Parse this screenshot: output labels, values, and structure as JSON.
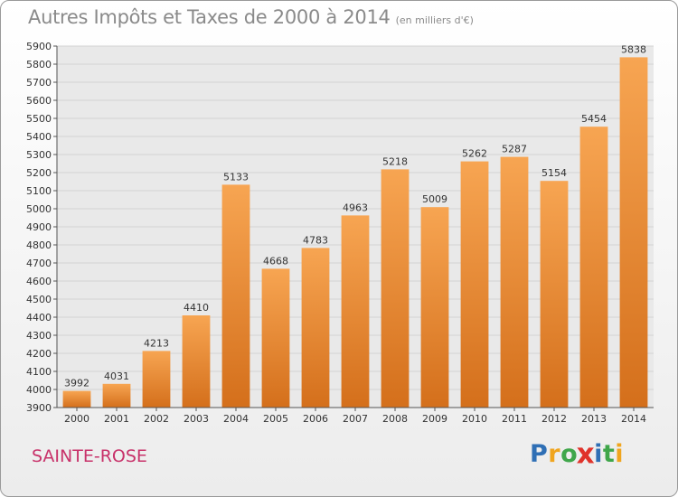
{
  "title": "Autres Impôts et Taxes de 2000 à 2014",
  "subtitle": "(en milliers d'€)",
  "commune": "SAINTE-ROSE",
  "logo": {
    "text": "Proxiti",
    "letters": [
      {
        "ch": "P",
        "color": "#2f6fb5"
      },
      {
        "ch": "r",
        "color": "#f0a51e"
      },
      {
        "ch": "o",
        "color": "#3fa64a"
      },
      {
        "ch": "x",
        "color": "#e0332b"
      },
      {
        "ch": "i",
        "color": "#2f6fb5"
      },
      {
        "ch": "t",
        "color": "#3fa64a"
      },
      {
        "ch": "i",
        "color": "#f0a51e"
      }
    ]
  },
  "chart_data": {
    "type": "bar",
    "title": "Autres Impôts et Taxes de 2000 à 2014",
    "subtitle": "(en milliers d'€)",
    "xlabel": "",
    "ylabel": "",
    "categories": [
      "2000",
      "2001",
      "2002",
      "2003",
      "2004",
      "2005",
      "2006",
      "2007",
      "2008",
      "2009",
      "2010",
      "2011",
      "2012",
      "2013",
      "2014"
    ],
    "values": [
      3992,
      4031,
      4213,
      4410,
      5133,
      4668,
      4783,
      4963,
      5218,
      5009,
      5262,
      5287,
      5154,
      5454,
      5838
    ],
    "ylim": [
      3900,
      5900
    ],
    "yticks": [
      3900,
      4000,
      4100,
      4200,
      4300,
      4400,
      4500,
      4600,
      4700,
      4800,
      4900,
      5000,
      5100,
      5200,
      5300,
      5400,
      5500,
      5600,
      5700,
      5800,
      5900
    ],
    "grid": true,
    "bar_color_top": "#f7a552",
    "bar_color_bottom": "#d46f1b"
  }
}
